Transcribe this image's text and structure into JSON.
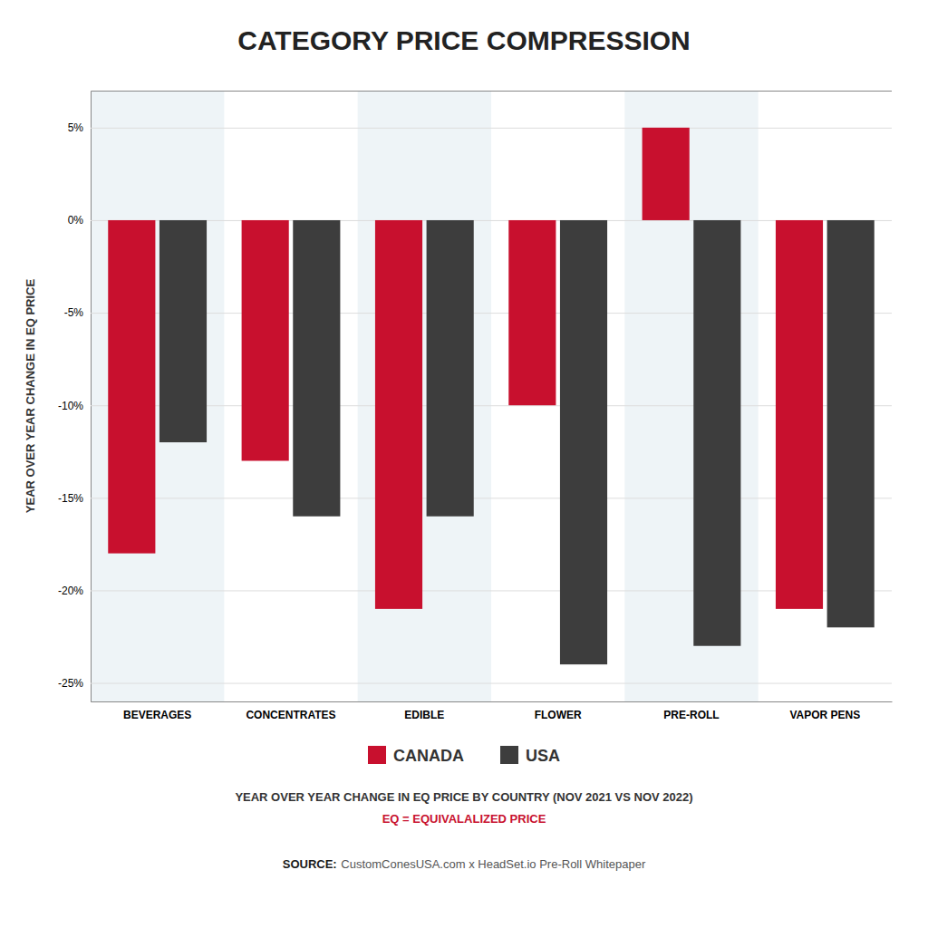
{
  "chart_data": {
    "type": "bar",
    "title": "CATEGORY PRICE COMPRESSION",
    "subtitle": "YEAR OVER YEAR CHANGE IN EQ PRICE BY COUNTRY (NOV 2021 VS NOV 2022)",
    "ylabel": "YEAR OVER YEAR CHANGE IN EQ PRICE",
    "categories": [
      "BEVERAGES",
      "CONCENTRATES",
      "EDIBLE",
      "FLOWER",
      "PRE-ROLL",
      "VAPOR PENS"
    ],
    "series": [
      {
        "name": "CANADA",
        "color": "#C8102E",
        "values": [
          -18,
          -13,
          -21,
          -10,
          5,
          -21
        ]
      },
      {
        "name": "USA",
        "color": "#3D3D3D",
        "values": [
          -12,
          -16,
          -16,
          -24,
          -23,
          -22
        ]
      }
    ],
    "ylim": [
      -26,
      7
    ],
    "yticks": [
      {
        "value": 5,
        "label": "5%"
      },
      {
        "value": 0,
        "label": "0%"
      },
      {
        "value": -5,
        "label": "-5%"
      },
      {
        "value": -10,
        "label": "-10%"
      },
      {
        "value": -15,
        "label": "-15%"
      },
      {
        "value": -20,
        "label": "-20%"
      },
      {
        "value": -25,
        "label": "-25%"
      }
    ],
    "grid": true,
    "legend": "bottom",
    "annotations": [
      "EQ = EQUIVALALIZED PRICE",
      "SOURCE:",
      "CustomConesUSA.com x HeadSet.io Pre-Roll Whitepaper"
    ]
  }
}
